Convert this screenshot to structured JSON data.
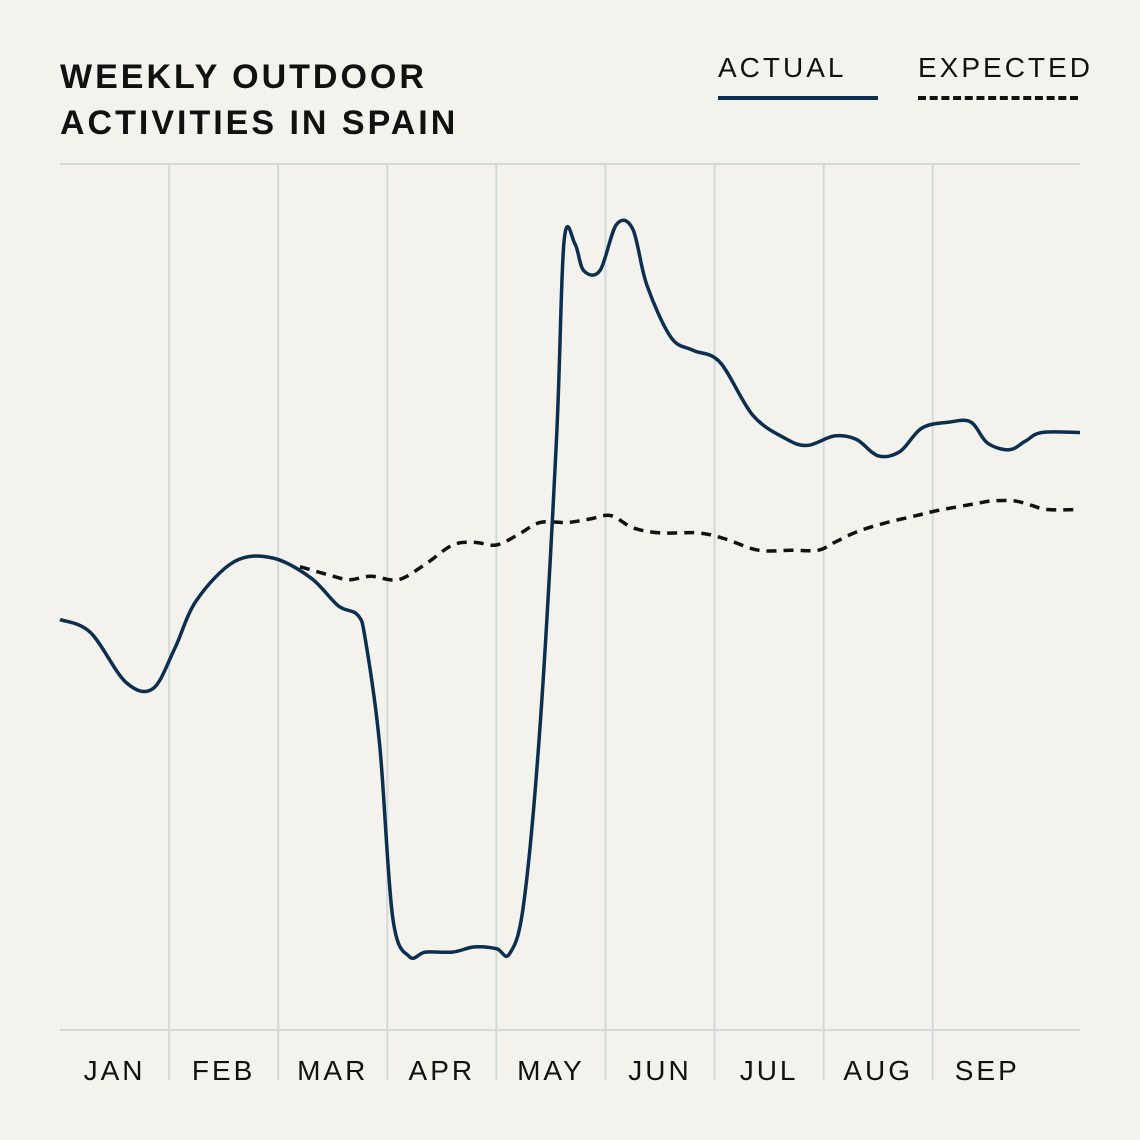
{
  "chart_data": {
    "type": "line",
    "title_lines": [
      "WEEKLY OUTDOOR",
      "ACTIVITIES IN SPAIN"
    ],
    "xlabel": "",
    "ylabel": "",
    "categories": [
      "JAN",
      "FEB",
      "MAR",
      "APR",
      "MAY",
      "JUN",
      "JUL",
      "AUG",
      "SEP"
    ],
    "x_range": [
      0,
      9.35
    ],
    "y_range": [
      0,
      100
    ],
    "grid": {
      "vertical": true,
      "horizontal_bounds": true
    },
    "legend": {
      "placement": "top-right",
      "entries": [
        {
          "label": "ACTUAL",
          "style": "solid",
          "color": "#0d2f4f"
        },
        {
          "label": "EXPECTED",
          "style": "dashed",
          "color": "#111111"
        }
      ]
    },
    "series": [
      {
        "name": "ACTUAL",
        "color": "#0d2f4f",
        "style": "solid",
        "points": [
          [
            0,
            47.4
          ],
          [
            0.28,
            45.9
          ],
          [
            0.6,
            40.2
          ],
          [
            0.85,
            39.4
          ],
          [
            1.05,
            44
          ],
          [
            1.25,
            49.6
          ],
          [
            1.6,
            54.1
          ],
          [
            1.95,
            54.5
          ],
          [
            2.3,
            52.2
          ],
          [
            2.55,
            49
          ],
          [
            2.73,
            47.9
          ],
          [
            2.8,
            45
          ],
          [
            2.93,
            33
          ],
          [
            3.05,
            13
          ],
          [
            3.2,
            8.5
          ],
          [
            3.35,
            9
          ],
          [
            3.6,
            9
          ],
          [
            3.8,
            9.6
          ],
          [
            4.0,
            9.4
          ],
          [
            4.12,
            8.8
          ],
          [
            4.25,
            14.5
          ],
          [
            4.4,
            35
          ],
          [
            4.55,
            68
          ],
          [
            4.62,
            91
          ],
          [
            4.72,
            90.8
          ],
          [
            4.8,
            87.7
          ],
          [
            4.95,
            87.7
          ],
          [
            5.1,
            93
          ],
          [
            5.25,
            92.5
          ],
          [
            5.38,
            86
          ],
          [
            5.6,
            80
          ],
          [
            5.8,
            78.5
          ],
          [
            6.05,
            77.1
          ],
          [
            6.35,
            71
          ],
          [
            6.65,
            68.3
          ],
          [
            6.85,
            67.5
          ],
          [
            7.1,
            68.6
          ],
          [
            7.3,
            68.2
          ],
          [
            7.5,
            66.3
          ],
          [
            7.7,
            66.8
          ],
          [
            7.9,
            69.5
          ],
          [
            8.15,
            70.2
          ],
          [
            8.35,
            70.2
          ],
          [
            8.5,
            67.8
          ],
          [
            8.7,
            67
          ],
          [
            8.85,
            68
          ],
          [
            9.0,
            69
          ],
          [
            9.35,
            69
          ]
        ]
      },
      {
        "name": "EXPECTED",
        "color": "#111111",
        "style": "dashed",
        "points": [
          [
            2.2,
            53.5
          ],
          [
            2.45,
            52.6
          ],
          [
            2.65,
            52
          ],
          [
            2.85,
            52.4
          ],
          [
            3.1,
            52
          ],
          [
            3.35,
            53.8
          ],
          [
            3.6,
            56
          ],
          [
            3.8,
            56.3
          ],
          [
            4.0,
            56
          ],
          [
            4.2,
            57.2
          ],
          [
            4.4,
            58.6
          ],
          [
            4.65,
            58.6
          ],
          [
            4.85,
            59
          ],
          [
            5.05,
            59.4
          ],
          [
            5.25,
            58
          ],
          [
            5.5,
            57.4
          ],
          [
            5.85,
            57.4
          ],
          [
            6.1,
            56.7
          ],
          [
            6.4,
            55.4
          ],
          [
            6.7,
            55.4
          ],
          [
            6.95,
            55.4
          ],
          [
            7.1,
            56.3
          ],
          [
            7.3,
            57.5
          ],
          [
            7.55,
            58.5
          ],
          [
            7.85,
            59.4
          ],
          [
            8.05,
            60
          ],
          [
            8.4,
            60.8
          ],
          [
            8.55,
            61.1
          ],
          [
            8.75,
            61.1
          ],
          [
            8.9,
            60.6
          ],
          [
            9.05,
            60.1
          ],
          [
            9.35,
            60.1
          ]
        ]
      }
    ]
  }
}
